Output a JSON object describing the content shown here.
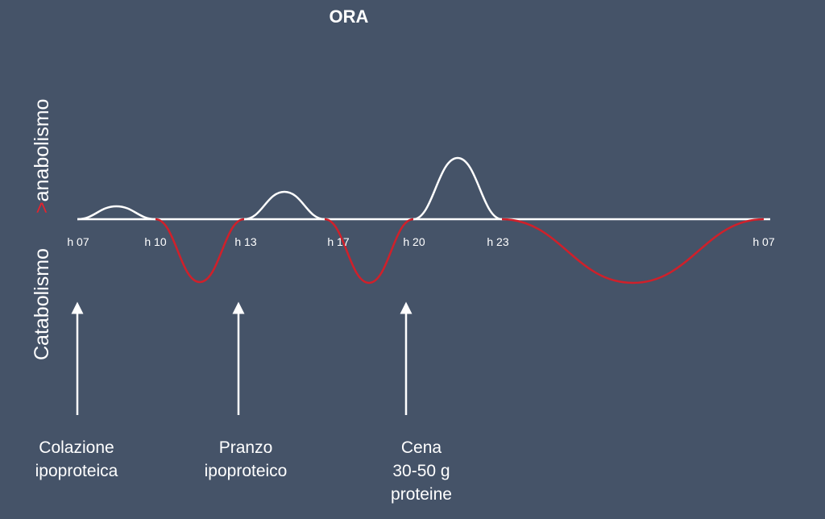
{
  "title": "ORA",
  "side_labels": {
    "upper_marker": ">",
    "upper": "anabolismo",
    "lower": "Catabolismo"
  },
  "time_labels": [
    "h 07",
    "h 10",
    "h 13",
    "h 17",
    "h 20",
    "h 23",
    "h 07"
  ],
  "meals": [
    {
      "lines": [
        "Colazione",
        "ipoproteica"
      ]
    },
    {
      "lines": [
        "Pranzo",
        "ipoproteico"
      ]
    },
    {
      "lines": [
        "Cena",
        "30-50 g",
        "proteine"
      ]
    }
  ]
}
